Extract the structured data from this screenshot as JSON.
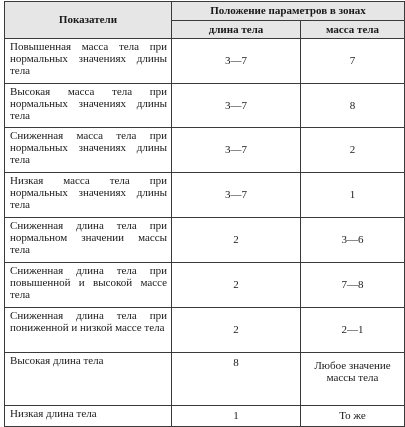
{
  "table": {
    "header": {
      "indicators": "Показатели",
      "zones": "Положение параметров в зонах",
      "length": "длина тела",
      "mass": "масса тела"
    },
    "rows": [
      {
        "label": "Повышенная масса тела при нормальных значениях длины тела",
        "length": "3—7",
        "mass": "7"
      },
      {
        "label": "Высокая масса тела при нормальных значениях длины тела",
        "length": "3—7",
        "mass": "8"
      },
      {
        "label": "Сниженная масса тела при нормальных значениях длины тела",
        "length": "3—7",
        "mass": "2"
      },
      {
        "label": "Низкая масса тела при нормальных значениях длины тела",
        "length": "3—7",
        "mass": "1"
      },
      {
        "label": "Сниженная длина тела при нормальном значении массы тела",
        "length": "2",
        "mass": "3—6"
      },
      {
        "label": "Сниженная длина тела при повышенной и высокой массе тела",
        "length": "2",
        "mass": "7—8"
      },
      {
        "label": "Сниженная длина тела при пониженной и низкой массе тела",
        "length": "2",
        "mass": "2—1"
      },
      {
        "label": "Высокая длина тела",
        "length": "8",
        "mass": "Любое значение массы тела"
      },
      {
        "label": "Низкая длина тела",
        "length": "1",
        "mass": "То же"
      }
    ]
  }
}
